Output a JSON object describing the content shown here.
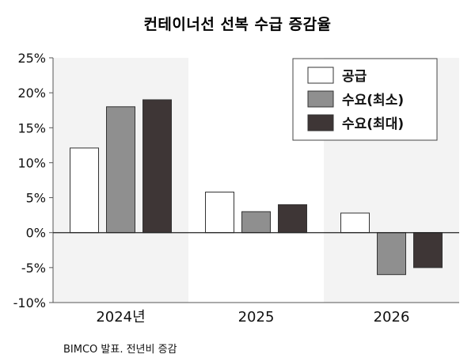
{
  "chart_data": {
    "type": "bar",
    "title": "컨테이너선 선복 수급 증감율",
    "categories": [
      "2024년",
      "2025",
      "2026"
    ],
    "series": [
      {
        "name": "공급",
        "values": [
          12.1,
          5.8,
          2.8
        ],
        "color": "#ffffff"
      },
      {
        "name": "수요(최소)",
        "values": [
          18.0,
          3.0,
          -6.0
        ],
        "color": "#8f8f8f"
      },
      {
        "name": "수요(최대)",
        "values": [
          19.0,
          4.0,
          -5.0
        ],
        "color": "#3e3636"
      }
    ],
    "yticks": [
      "25%",
      "20%",
      "15%",
      "10%",
      "5%",
      "0%",
      "-5%",
      "-10%"
    ],
    "ylim": [
      -10,
      25
    ],
    "xlabel": "",
    "ylabel": "",
    "legend": "top-right",
    "grid": false
  },
  "footer": {
    "source": "BIMCO 발표.  전년비 증감"
  }
}
